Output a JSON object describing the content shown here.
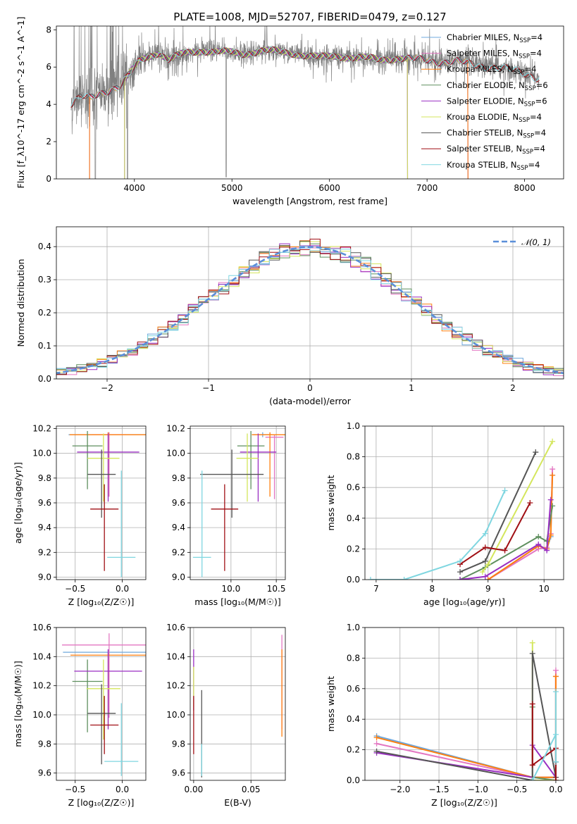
{
  "figure_title": "PLATE=1008, MJD=52707, FIBERID=0479, z=0.127",
  "colors": {
    "Chabrier MILES": "#6fa8dc",
    "Salpeter MILES": "#e377c2",
    "Kroupa MILES": "#ff7f0e",
    "Chabrier ELODIE": "#5e8f5e",
    "Salpeter ELODIE": "#9a2fc2",
    "Kroupa ELODIE": "#d4e65c",
    "Chabrier STELIB": "#555555",
    "Salpeter STELIB": "#a00f14",
    "Kroupa STELIB": "#7fd6e0",
    "normal": "#5b8fd9"
  },
  "chart_data": [
    {
      "id": "spectrum",
      "type": "line",
      "xlabel": "wavelength [Angstrom, rest frame]",
      "ylabel": "Flux [f_λ10^-17 erg cm^-2 s^-1 A^-1]",
      "xlim": [
        3200,
        8400
      ],
      "ylim": [
        0,
        8.2
      ],
      "xticks": [
        4000,
        5000,
        6000,
        7000,
        8000
      ],
      "yticks": [
        0,
        2,
        4,
        6,
        8
      ],
      "legend_position": "upper right",
      "legend": [
        {
          "text": "Chabrier MILES, N",
          "sub": "SSP",
          "tail": "=4",
          "color_key": "Chabrier MILES"
        },
        {
          "text": "Salpeter MILES, N",
          "sub": "SSP",
          "tail": "=4",
          "color_key": "Salpeter MILES"
        },
        {
          "text": "Kroupa MILES, N",
          "sub": "SSP",
          "tail": "=4",
          "color_key": "Kroupa MILES"
        },
        {
          "text": "Chabrier ELODIE, N",
          "sub": "SSP",
          "tail": "=6",
          "color_key": "Chabrier ELODIE"
        },
        {
          "text": "Salpeter ELODIE, N",
          "sub": "SSP",
          "tail": "=6",
          "color_key": "Salpeter ELODIE"
        },
        {
          "text": "Kroupa ELODIE, N",
          "sub": "SSP",
          "tail": "=4",
          "color_key": "Kroupa ELODIE"
        },
        {
          "text": "Chabrier STELIB, N",
          "sub": "SSP",
          "tail": "=4",
          "color_key": "Chabrier STELIB"
        },
        {
          "text": "Salpeter STELIB, N",
          "sub": "SSP",
          "tail": "=4",
          "color_key": "Salpeter STELIB"
        },
        {
          "text": "Kroupa STELIB, N",
          "sub": "SSP",
          "tail": "=4",
          "color_key": "Kroupa STELIB"
        }
      ],
      "model_continuum": {
        "x": [
          3350,
          3450,
          3550,
          3650,
          3750,
          3850,
          3950,
          4050,
          4150,
          4250,
          4350,
          4500,
          4700,
          4900,
          5100,
          5300,
          5500,
          5700,
          5900,
          6100,
          6300,
          6500,
          6700,
          6900,
          7100,
          7300,
          7500,
          7700,
          7900,
          8100,
          8150
        ],
        "y": [
          4.0,
          4.4,
          4.3,
          4.6,
          4.8,
          5.0,
          5.6,
          6.3,
          6.6,
          6.8,
          6.4,
          6.7,
          6.9,
          6.8,
          6.7,
          6.9,
          6.8,
          6.7,
          6.5,
          6.6,
          6.5,
          6.4,
          6.5,
          6.4,
          6.3,
          6.3,
          6.1,
          6.0,
          5.8,
          5.5,
          5.4
        ]
      }
    },
    {
      "id": "residuals",
      "type": "step",
      "xlabel": "(data-model)/error",
      "ylabel": "Normed distribution",
      "xlim": [
        -2.5,
        2.5
      ],
      "ylim": [
        0,
        0.46
      ],
      "xticks": [
        -2,
        -1,
        0,
        1,
        2
      ],
      "yticks": [
        0.0,
        0.1,
        0.2,
        0.3,
        0.4
      ],
      "legend_position": "upper right",
      "legend_label": "𝒩(0, 1)",
      "bin_width": 0.1
    },
    {
      "id": "age_vs_Z",
      "type": "errorbar",
      "xlabel": "Z [log₁₀(Z/Z☉)]",
      "ylabel": "age  [log₁₀(age/yr)]",
      "xlim": [
        -0.7,
        0.25
      ],
      "ylim": [
        8.98,
        10.22
      ],
      "xticks": [
        -0.5,
        0.0
      ],
      "yticks": [
        9.0,
        9.2,
        9.4,
        9.6,
        9.8,
        10.0,
        10.2
      ],
      "points": [
        {
          "key": "Chabrier MILES",
          "x": -0.15,
          "xerr": 0.42,
          "y": 10.15,
          "yerr": [
            0.02,
            0.02
          ]
        },
        {
          "key": "Salpeter MILES",
          "x": -0.14,
          "xerr": 0.18,
          "y": 10.15,
          "yerr": [
            0.5,
            0.02
          ]
        },
        {
          "key": "Kroupa MILES",
          "x": -0.15,
          "xerr": 0.41,
          "y": 10.15,
          "yerr": [
            0.5,
            0.02
          ]
        },
        {
          "key": "Chabrier ELODIE",
          "x": -0.37,
          "xerr": 0.16,
          "y": 10.06,
          "yerr": [
            0.35,
            0.12
          ]
        },
        {
          "key": "Salpeter ELODIE",
          "x": -0.15,
          "xerr": 0.33,
          "y": 10.01,
          "yerr": [
            0.4,
            0.15
          ]
        },
        {
          "key": "Kroupa ELODIE",
          "x": -0.2,
          "xerr": 0.17,
          "y": 9.96,
          "yerr": [
            0.35,
            0.2
          ]
        },
        {
          "key": "Chabrier STELIB",
          "x": -0.22,
          "xerr": 0.15,
          "y": 9.83,
          "yerr": [
            0.35,
            0.2
          ]
        },
        {
          "key": "Salpeter STELIB",
          "x": -0.19,
          "xerr": 0.15,
          "y": 9.55,
          "yerr": [
            0.5,
            0.2
          ]
        },
        {
          "key": "Kroupa STELIB",
          "x": -0.01,
          "xerr": 0.15,
          "y": 9.16,
          "yerr": [
            0.16,
            0.7
          ]
        }
      ]
    },
    {
      "id": "age_vs_mass",
      "type": "errorbar",
      "xlabel": "mass [log₁₀(M/M☉)]",
      "xlim": [
        9.55,
        10.6
      ],
      "ylim": [
        8.98,
        10.22
      ],
      "xticks": [
        10.0,
        10.5
      ],
      "yticks": [
        9.0,
        9.2,
        9.4,
        9.6,
        9.8,
        10.0,
        10.2
      ],
      "points": [
        {
          "key": "Chabrier MILES",
          "x": 10.35,
          "xerr": 0.1,
          "y": 10.15,
          "yerr": [
            0.02,
            0.02
          ]
        },
        {
          "key": "Salpeter MILES",
          "x": 10.48,
          "xerr": 0.1,
          "y": 10.13,
          "yerr": [
            0.5,
            0.02
          ]
        },
        {
          "key": "Kroupa MILES",
          "x": 10.43,
          "xerr": 0.2,
          "y": 10.15,
          "yerr": [
            0.5,
            0.02
          ]
        },
        {
          "key": "Chabrier ELODIE",
          "x": 10.22,
          "xerr": 0.15,
          "y": 10.06,
          "yerr": [
            0.35,
            0.12
          ]
        },
        {
          "key": "Salpeter ELODIE",
          "x": 10.3,
          "xerr": 0.2,
          "y": 10.01,
          "yerr": [
            0.4,
            0.15
          ]
        },
        {
          "key": "Kroupa ELODIE",
          "x": 10.18,
          "xerr": 0.12,
          "y": 9.96,
          "yerr": [
            0.35,
            0.2
          ]
        },
        {
          "key": "Chabrier STELIB",
          "x": 10.01,
          "xerr": 0.35,
          "y": 9.83,
          "yerr": [
            0.35,
            0.2
          ]
        },
        {
          "key": "Salpeter STELIB",
          "x": 9.93,
          "xerr": 0.15,
          "y": 9.55,
          "yerr": [
            0.5,
            0.2
          ]
        },
        {
          "key": "Kroupa STELIB",
          "x": 9.68,
          "xerr": 0.1,
          "y": 9.16,
          "yerr": [
            0.16,
            0.7
          ]
        }
      ]
    },
    {
      "id": "weight_vs_age",
      "type": "line",
      "xlabel": "age  [log₁₀(age/yr)]",
      "ylabel": "mass weight",
      "xlim": [
        6.8,
        10.35
      ],
      "ylim": [
        0,
        1.0
      ],
      "xticks": [
        7,
        8,
        9,
        10
      ],
      "yticks": [
        0.0,
        0.2,
        0.4,
        0.6,
        0.8,
        1.0
      ],
      "series": [
        {
          "key": "Chabrier MILES",
          "x": [
            9.0,
            9.9,
            10.05,
            10.12,
            10.15
          ],
          "y": [
            0.0,
            0.22,
            0.2,
            0.28,
            0.68
          ]
        },
        {
          "key": "Salpeter MILES",
          "x": [
            9.0,
            9.9,
            10.05,
            10.12,
            10.15
          ],
          "y": [
            0.0,
            0.2,
            0.21,
            0.3,
            0.72
          ]
        },
        {
          "key": "Kroupa MILES",
          "x": [
            9.0,
            9.9,
            10.05,
            10.12,
            10.15
          ],
          "y": [
            0.0,
            0.22,
            0.2,
            0.29,
            0.68
          ]
        },
        {
          "key": "Chabrier ELODIE",
          "x": [
            8.5,
            8.95,
            9.9,
            10.05,
            10.15
          ],
          "y": [
            0.0,
            0.08,
            0.28,
            0.25,
            0.48
          ]
        },
        {
          "key": "Salpeter ELODIE",
          "x": [
            8.5,
            8.95,
            9.9,
            10.05,
            10.12
          ],
          "y": [
            0.0,
            0.02,
            0.23,
            0.19,
            0.52
          ]
        },
        {
          "key": "Kroupa ELODIE",
          "x": [
            8.9,
            9.0,
            10.15
          ],
          "y": [
            0.05,
            0.1,
            0.9
          ]
        },
        {
          "key": "Chabrier STELIB",
          "x": [
            8.5,
            8.95,
            9.85
          ],
          "y": [
            0.05,
            0.12,
            0.83
          ]
        },
        {
          "key": "Salpeter STELIB",
          "x": [
            8.5,
            8.95,
            9.3,
            9.75
          ],
          "y": [
            0.1,
            0.21,
            0.19,
            0.5
          ]
        },
        {
          "key": "Kroupa STELIB",
          "x": [
            6.9,
            7.5,
            8.5,
            8.95,
            9.3
          ],
          "y": [
            0.0,
            0.0,
            0.12,
            0.3,
            0.58
          ]
        }
      ]
    },
    {
      "id": "mass_vs_Z",
      "type": "errorbar",
      "xlabel": "Z [log₁₀(Z/Z☉)]",
      "ylabel": "mass [log₁₀(M/M☉)]",
      "xlim": [
        -0.7,
        0.25
      ],
      "ylim": [
        9.55,
        10.6
      ],
      "xticks": [
        -0.5,
        0.0
      ],
      "yticks": [
        9.6,
        9.8,
        10.0,
        10.2,
        10.4,
        10.6
      ],
      "points": [
        {
          "key": "Chabrier MILES",
          "x": -0.15,
          "xerr": 0.48,
          "y": 10.43,
          "yerr": [
            0.02,
            0.02
          ]
        },
        {
          "key": "Salpeter MILES",
          "x": -0.14,
          "xerr": 0.5,
          "y": 10.48,
          "yerr": [
            0.5,
            0.08
          ]
        },
        {
          "key": "Kroupa MILES",
          "x": -0.15,
          "xerr": 0.4,
          "y": 10.41,
          "yerr": [
            0.5,
            0.02
          ]
        },
        {
          "key": "Chabrier ELODIE",
          "x": -0.37,
          "xerr": 0.16,
          "y": 10.23,
          "yerr": [
            0.35,
            0.15
          ]
        },
        {
          "key": "Salpeter ELODIE",
          "x": -0.15,
          "xerr": 0.36,
          "y": 10.3,
          "yerr": [
            0.4,
            0.15
          ]
        },
        {
          "key": "Kroupa ELODIE",
          "x": -0.2,
          "xerr": 0.18,
          "y": 10.18,
          "yerr": [
            0.35,
            0.2
          ]
        },
        {
          "key": "Chabrier STELIB",
          "x": -0.22,
          "xerr": 0.15,
          "y": 10.01,
          "yerr": [
            0.35,
            0.2
          ]
        },
        {
          "key": "Salpeter STELIB",
          "x": -0.19,
          "xerr": 0.15,
          "y": 9.93,
          "yerr": [
            0.2,
            0.2
          ]
        },
        {
          "key": "Kroupa STELIB",
          "x": -0.01,
          "xerr": 0.18,
          "y": 9.68,
          "yerr": [
            0.1,
            0.4
          ]
        }
      ]
    },
    {
      "id": "mass_vs_EBV",
      "type": "errorbar",
      "xlabel": "E(B-V)",
      "xlim": [
        -0.003,
        0.08
      ],
      "ylim": [
        9.55,
        10.6
      ],
      "xticks": [
        0.0,
        0.05
      ],
      "yticks": [
        9.6,
        9.8,
        10.0,
        10.2,
        10.4,
        10.6
      ],
      "points": [
        {
          "key": "Salpeter MILES",
          "x": 0.077,
          "xerr": 0,
          "y": 10.25,
          "yerr": [
            0.35,
            0.3
          ]
        },
        {
          "key": "Kroupa MILES",
          "x": 0.077,
          "xerr": 0,
          "y": 10.15,
          "yerr": [
            0.3,
            0.3
          ]
        },
        {
          "key": "Salpeter ELODIE",
          "x": 0.0,
          "xerr": 0,
          "y": 10.18,
          "yerr": [
            0.15,
            0.27
          ]
        },
        {
          "key": "Kroupa ELODIE",
          "x": 0.0,
          "xerr": 0,
          "y": 10.2,
          "yerr": [
            0.15,
            0.13
          ]
        },
        {
          "key": "Salpeter STELIB",
          "x": 0.0,
          "xerr": 0,
          "y": 9.93,
          "yerr": [
            0.2,
            0.2
          ]
        },
        {
          "key": "Chabrier STELIB",
          "x": 0.007,
          "xerr": 0,
          "y": 9.82,
          "yerr": [
            0.25,
            0.35
          ]
        },
        {
          "key": "Kroupa STELIB",
          "x": 0.007,
          "xerr": 0,
          "y": 9.7,
          "yerr": [
            0.12,
            0.1
          ]
        }
      ]
    },
    {
      "id": "weight_vs_Z",
      "type": "line",
      "xlabel": "Z [log₁₀(Z/Z☉)]",
      "ylabel": "mass weight",
      "xlim": [
        -2.45,
        0.1
      ],
      "ylim": [
        0,
        1.0
      ],
      "xticks": [
        -2.0,
        -1.5,
        -1.0,
        -0.5,
        0.0
      ],
      "yticks": [
        0.0,
        0.2,
        0.4,
        0.6,
        0.8,
        1.0
      ],
      "series": [
        {
          "key": "Chabrier MILES",
          "x": [
            -2.3,
            -0.3,
            0.0,
            0.0
          ],
          "y": [
            0.29,
            0.02,
            0.02,
            0.68
          ]
        },
        {
          "key": "Salpeter MILES",
          "x": [
            -2.3,
            -0.3,
            0.0,
            0.0
          ],
          "y": [
            0.24,
            0.02,
            0.02,
            0.72
          ]
        },
        {
          "key": "Kroupa MILES",
          "x": [
            -2.3,
            -0.3,
            0.0,
            0.0
          ],
          "y": [
            0.28,
            0.02,
            0.02,
            0.68
          ]
        },
        {
          "key": "Chabrier ELODIE",
          "x": [
            -0.3,
            -0.3,
            0.0
          ],
          "y": [
            0.48,
            0.02,
            0.0
          ]
        },
        {
          "key": "Salpeter ELODIE",
          "x": [
            -2.3,
            -0.3,
            -0.3,
            0.0
          ],
          "y": [
            0.18,
            0.02,
            0.23,
            0.02
          ]
        },
        {
          "key": "Kroupa ELODIE",
          "x": [
            -0.3,
            -0.3,
            0.0
          ],
          "y": [
            0.9,
            0.0,
            0.0
          ]
        },
        {
          "key": "Chabrier STELIB",
          "x": [
            -2.3,
            -0.3,
            -0.3,
            0.0,
            0.0
          ],
          "y": [
            0.19,
            0.0,
            0.83,
            0.02,
            0.12
          ]
        },
        {
          "key": "Salpeter STELIB",
          "x": [
            -0.3,
            -0.3,
            0.0,
            0.0
          ],
          "y": [
            0.5,
            0.1,
            0.21,
            0.0
          ]
        },
        {
          "key": "Kroupa STELIB",
          "x": [
            -0.3,
            0.0,
            0.0,
            0.0
          ],
          "y": [
            0.0,
            0.3,
            0.58,
            0.12
          ]
        }
      ]
    }
  ]
}
